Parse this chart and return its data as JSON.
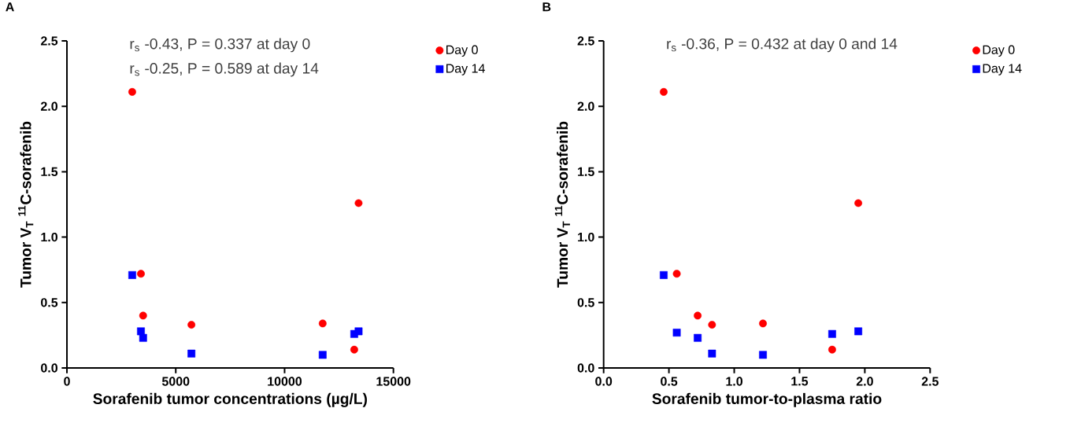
{
  "chart_data": [
    {
      "type": "scatter",
      "title": "A",
      "xlabel": "Sorafenib tumor concentrations (µg/L)",
      "ylabel": "Tumor V$_{T}$ $^{11}$C-sorafenib",
      "annotations": [
        "r$_{s}$ -0.43, P = 0.337 at day 0",
        "r$_{s}$ -0.25, P = 0.589 at day 14"
      ],
      "series": [
        {
          "name": "Day 0",
          "color": "#ff0000",
          "marker": "circle",
          "x": [
            3000,
            3400,
            3500,
            5720,
            11750,
            13400,
            13200
          ],
          "values": [
            2.11,
            0.72,
            0.4,
            0.33,
            0.34,
            1.26,
            0.14
          ]
        },
        {
          "name": "Day 14",
          "color": "#0000ff",
          "marker": "square",
          "x": [
            3000,
            3400,
            3500,
            5720,
            11750,
            13200,
            13400
          ],
          "values": [
            0.71,
            0.28,
            0.23,
            0.11,
            0.1,
            0.26,
            0.28
          ]
        }
      ],
      "xlim": [
        0,
        15000
      ],
      "ylim": [
        0,
        2.5
      ],
      "xticks": [
        0,
        5000,
        10000,
        15000
      ],
      "yticks": [
        {
          "value": 0,
          "label": "0.0"
        },
        {
          "value": 0.5,
          "label": "0.5"
        },
        {
          "value": 1,
          "label": "1.0"
        },
        {
          "value": 1.5,
          "label": "1.5"
        },
        {
          "value": 2,
          "label": "2.0"
        },
        {
          "value": 2.5,
          "label": "2.5"
        }
      ],
      "legend": "top right"
    },
    {
      "type": "scatter",
      "title": "B",
      "xlabel": "Sorafenib tumor-to-plasma ratio",
      "ylabel": "Tumor V$_{T}$ $^{11}$C-sorafenib",
      "annotations": [
        "r$_{s}$ -0.36, P = 0.432 at day 0 and 14"
      ],
      "series": [
        {
          "name": "Day 0",
          "color": "#ff0000",
          "marker": "circle",
          "x": [
            0.46,
            0.56,
            0.72,
            0.83,
            1.22,
            1.95,
            1.75
          ],
          "values": [
            2.11,
            0.72,
            0.4,
            0.33,
            0.34,
            1.26,
            0.14
          ]
        },
        {
          "name": "Day 14",
          "color": "#0000ff",
          "marker": "square",
          "x": [
            0.46,
            0.56,
            0.72,
            0.83,
            1.22,
            1.75,
            1.95
          ],
          "values": [
            0.71,
            0.27,
            0.23,
            0.11,
            0.1,
            0.26,
            0.28
          ]
        }
      ],
      "xlim": [
        0,
        2.5
      ],
      "ylim": [
        0,
        2.5
      ],
      "xticks": [
        {
          "value": 0,
          "label": "0.0"
        },
        {
          "value": 0.5,
          "label": "0.5"
        },
        {
          "value": 1,
          "label": "1.0"
        },
        {
          "value": 1.5,
          "label": "1.5"
        },
        {
          "value": 2,
          "label": "2.0"
        },
        {
          "value": 2.5,
          "label": "2.5"
        }
      ],
      "yticks": [
        {
          "value": 0,
          "label": "0.0"
        },
        {
          "value": 0.5,
          "label": "0.5"
        },
        {
          "value": 1,
          "label": "1.0"
        },
        {
          "value": 1.5,
          "label": "1.5"
        },
        {
          "value": 2,
          "label": "2.0"
        },
        {
          "value": 2.5,
          "label": "2.5"
        }
      ],
      "legend": "top right"
    }
  ]
}
